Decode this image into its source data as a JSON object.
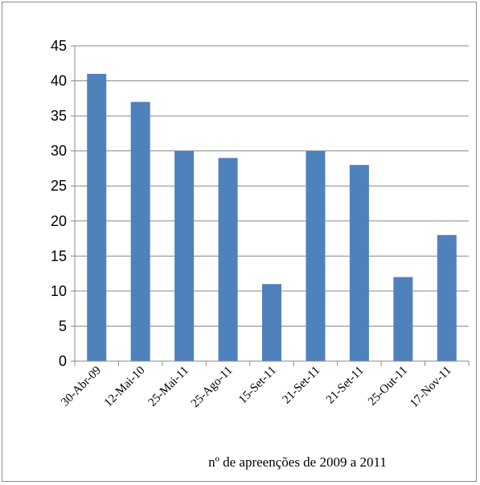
{
  "chart_data": {
    "type": "bar",
    "title": "",
    "xlabel": "nº de apreenções de 2009 a 2011",
    "ylabel": "",
    "ylim": [
      0,
      45
    ],
    "yticks": [
      0,
      5,
      10,
      15,
      20,
      25,
      30,
      35,
      40,
      45
    ],
    "categories": [
      "30-Abr-09",
      "12-Mai-10",
      "25-Mai-11",
      "25-Ago-11",
      "15-Set-11",
      "21-Set-11",
      "21-Set-11",
      "25-Out-11",
      "17-Nov-11"
    ],
    "values": [
      41,
      37,
      30,
      29,
      11,
      30,
      28,
      12,
      18
    ],
    "bar_color": "#4f81bd",
    "grid": true,
    "legend": "none"
  }
}
